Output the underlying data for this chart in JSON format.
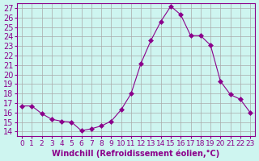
{
  "x": [
    0,
    1,
    2,
    3,
    4,
    5,
    6,
    7,
    8,
    9,
    10,
    11,
    12,
    13,
    14,
    15,
    16,
    17,
    18,
    19,
    20,
    21,
    22,
    23
  ],
  "y": [
    16.7,
    16.7,
    15.9,
    15.3,
    15.1,
    15.0,
    14.1,
    14.3,
    14.6,
    15.1,
    16.3,
    18.0,
    21.2,
    23.6,
    25.6,
    27.2,
    26.3,
    24.1,
    24.1,
    23.1,
    19.3,
    17.9,
    17.4,
    16.0
  ],
  "line_color": "#8B008B",
  "marker": "D",
  "marker_size": 3,
  "bg_color": "#cef5f0",
  "grid_color": "#aaaaaa",
  "xlabel": "Windchill (Refroidissement éolien,°C)",
  "ylabel": "",
  "xlim": [
    -0.5,
    23.5
  ],
  "ylim": [
    13.5,
    27.5
  ],
  "yticks": [
    14,
    15,
    16,
    17,
    18,
    19,
    20,
    21,
    22,
    23,
    24,
    25,
    26,
    27
  ],
  "xticks": [
    0,
    1,
    2,
    3,
    4,
    5,
    6,
    7,
    8,
    9,
    10,
    11,
    12,
    13,
    14,
    15,
    16,
    17,
    18,
    19,
    20,
    21,
    22,
    23
  ],
  "tick_color": "#8B008B",
  "label_color": "#8B008B",
  "axis_color": "#8B008B",
  "font_size": 7
}
